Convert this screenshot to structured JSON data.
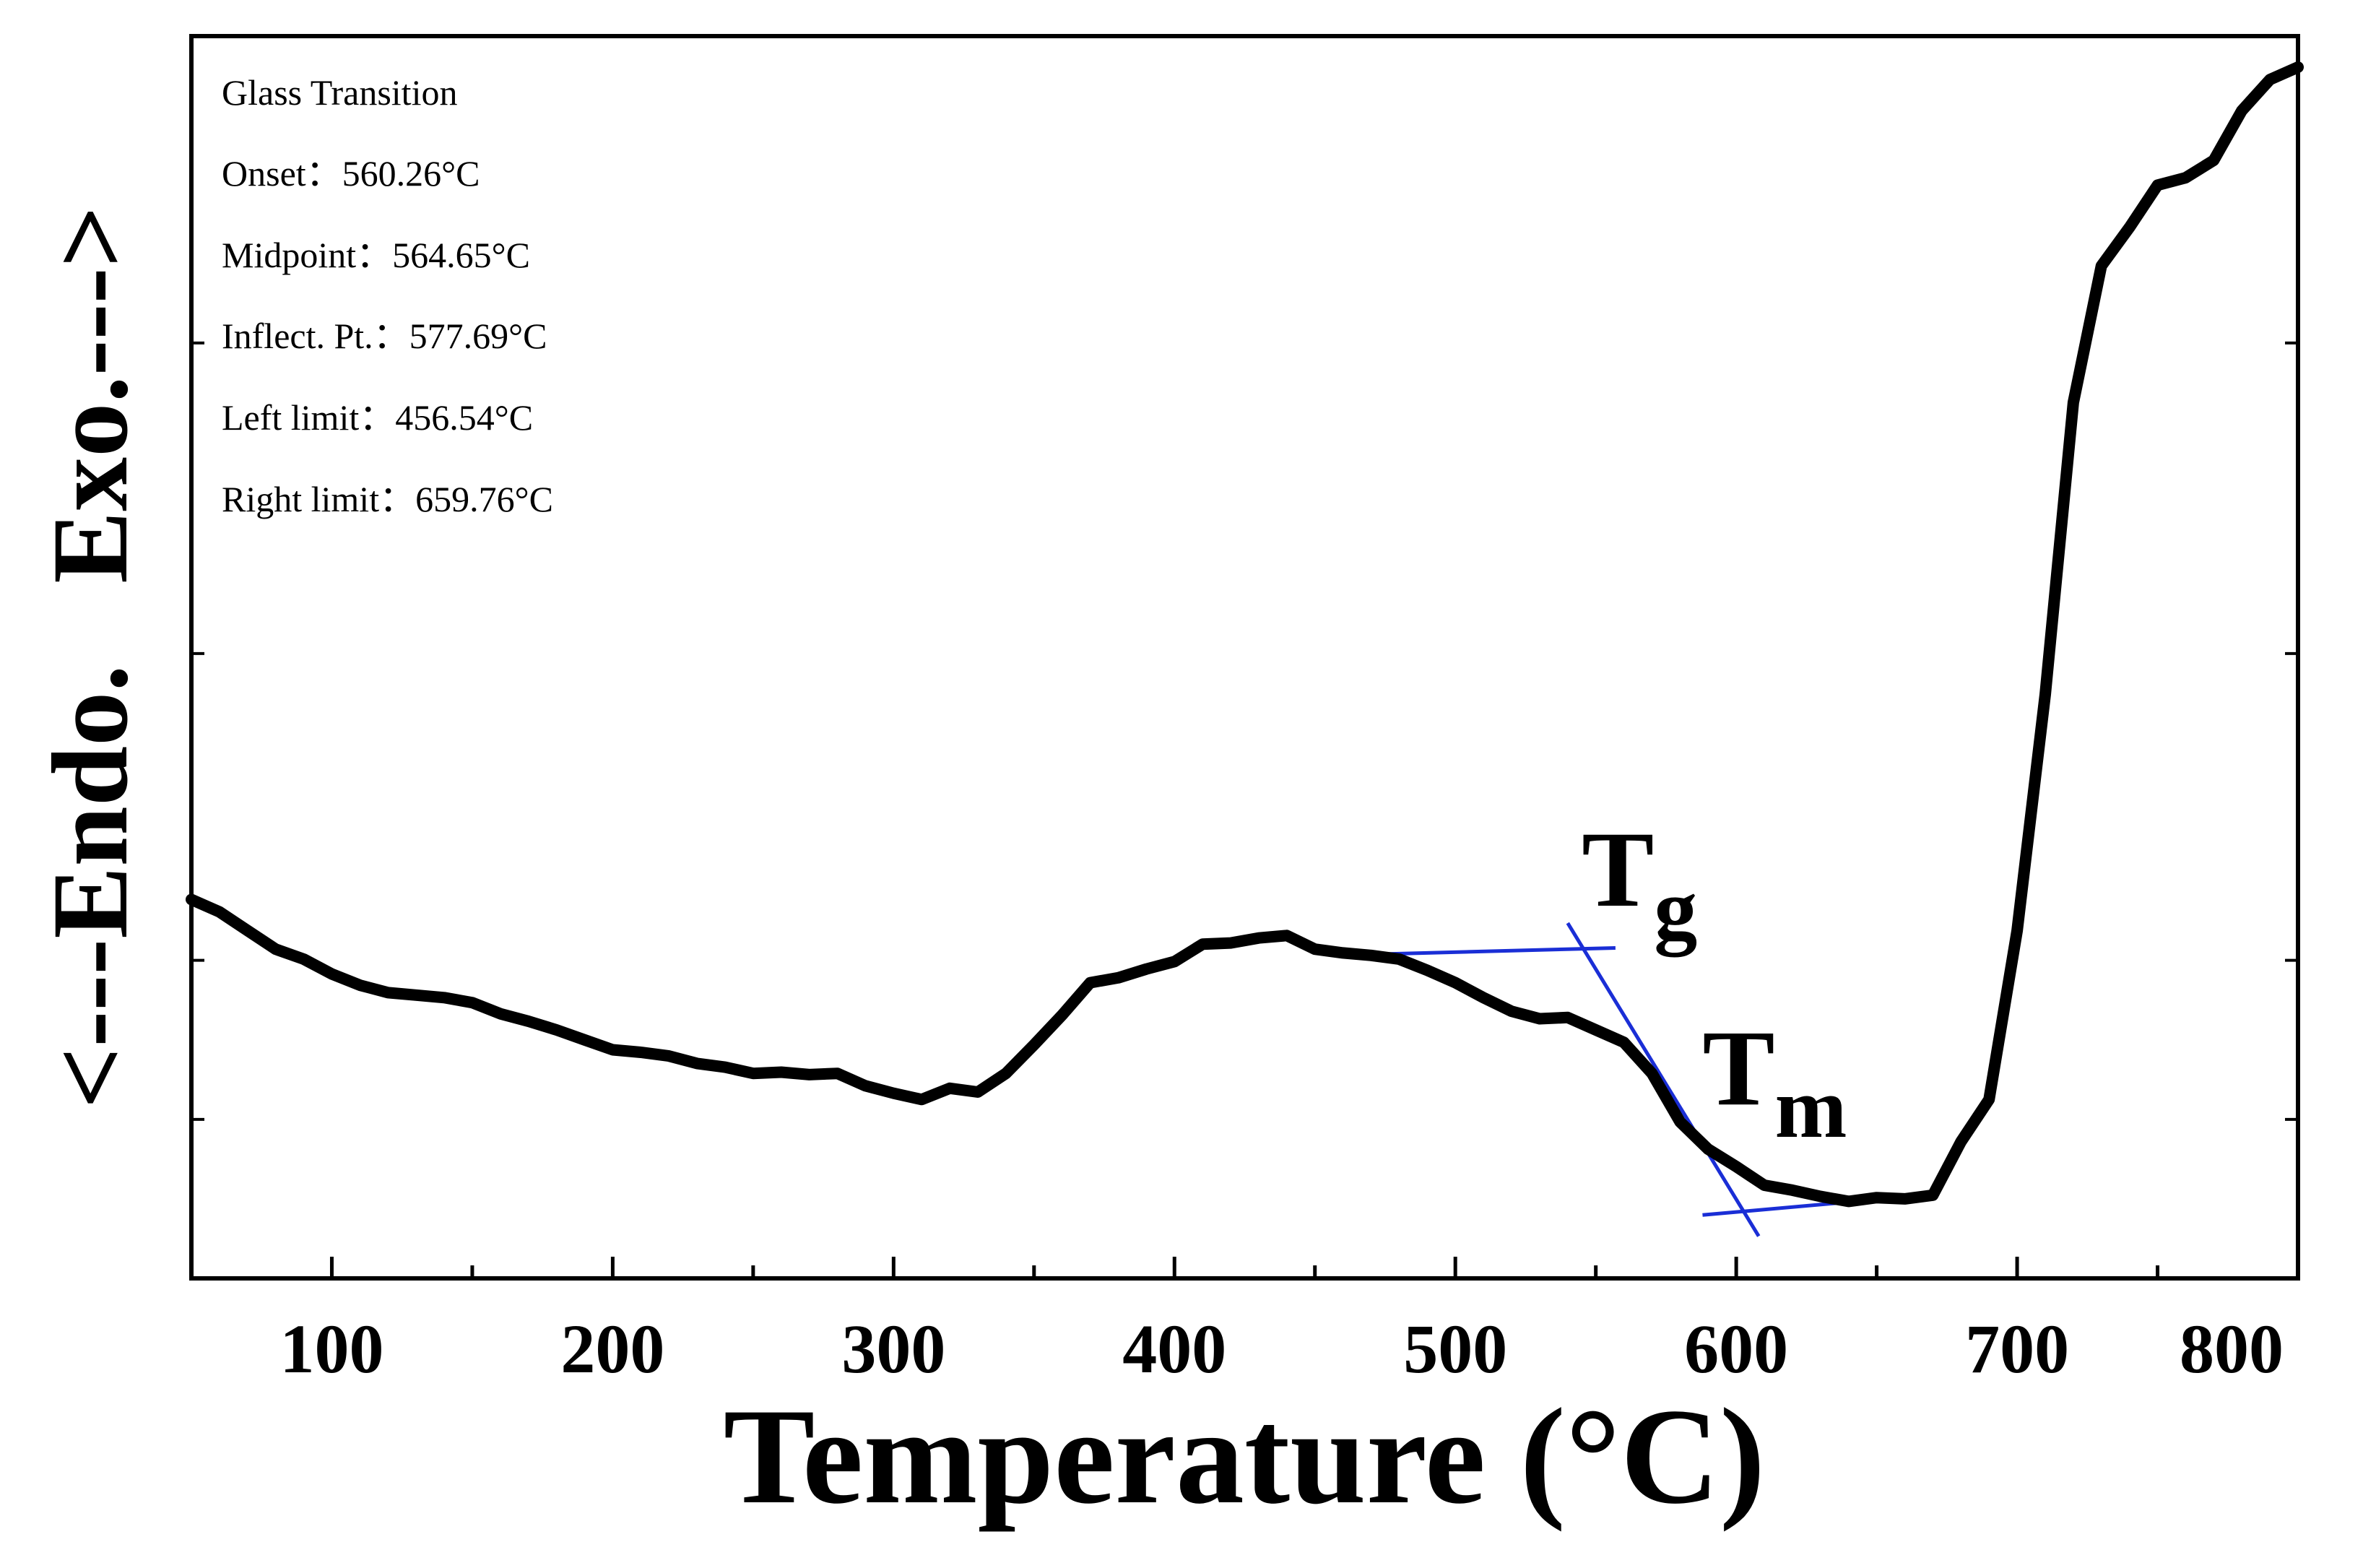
{
  "chart_data": {
    "type": "line",
    "xlabel": "Temperature (°C)",
    "ylabel": "<---Endo.   Exo.--->",
    "xlim": [
      50,
      800
    ],
    "ylim": [
      0,
      100
    ],
    "xticks": [
      100,
      200,
      300,
      400,
      500,
      600,
      700,
      800
    ],
    "grid": false,
    "series": [
      {
        "x": [
          50,
          60,
          70,
          80,
          90,
          100,
          110,
          120,
          130,
          140,
          150,
          160,
          170,
          180,
          190,
          200,
          210,
          220,
          230,
          240,
          250,
          260,
          270,
          280,
          290,
          300,
          310,
          320,
          330,
          340,
          350,
          360,
          370,
          380,
          390,
          400,
          410,
          420,
          430,
          440,
          450,
          460,
          470,
          480,
          490,
          500,
          510,
          520,
          530,
          540,
          550,
          560,
          570,
          580,
          590,
          600,
          610,
          620,
          630,
          640,
          650,
          660,
          670,
          680,
          690,
          700,
          710,
          720,
          730,
          740,
          750,
          760,
          770,
          780,
          790,
          800
        ],
        "y": [
          30.5,
          29.5,
          28.0,
          26.5,
          25.7,
          24.5,
          23.6,
          23.0,
          22.8,
          22.6,
          22.2,
          21.3,
          20.7,
          20.0,
          19.2,
          18.4,
          18.2,
          17.9,
          17.3,
          17.0,
          16.5,
          16.6,
          16.4,
          16.5,
          15.5,
          14.9,
          14.4,
          15.3,
          15.0,
          16.5,
          18.8,
          21.2,
          23.8,
          24.2,
          24.9,
          25.5,
          26.9,
          27.0,
          27.4,
          27.6,
          26.5,
          26.2,
          26.0,
          25.7,
          24.8,
          23.8,
          22.6,
          21.5,
          20.9,
          21.0,
          20.0,
          19.0,
          16.5,
          12.6,
          10.4,
          9.0,
          7.5,
          7.1,
          6.6,
          6.2,
          6.5,
          6.4,
          6.7,
          11.0,
          14.4,
          28.0,
          47.0,
          70.5,
          81.5,
          84.6,
          88.0,
          88.6,
          90.0,
          94.0,
          96.5,
          97.5
        ]
      }
    ],
    "annotations": [
      {
        "text": "Glass Transition"
      },
      {
        "text": "Onset：560.26°C"
      },
      {
        "text": "Midpoint：564.65°C"
      },
      {
        "text": "Inflect. Pt.：577.69°C"
      },
      {
        "text": "Left limit：456.54°C"
      },
      {
        "text": "Right limit：659.76°C"
      }
    ],
    "markers": [
      {
        "label": "T",
        "sub": "g",
        "x": 545,
        "y": 30
      },
      {
        "label": "T",
        "sub": "m",
        "x": 588,
        "y": 14
      }
    ],
    "tangent_lines": [
      {
        "x": [
          456,
          557
        ],
        "y": [
          26.0,
          26.6
        ]
      },
      {
        "x": [
          540,
          608
        ],
        "y": [
          28.6,
          3.4
        ]
      },
      {
        "x": [
          588,
          668
        ],
        "y": [
          5.1,
          6.7
        ]
      }
    ],
    "colors": {
      "curve": "#000000",
      "tangent": "#1a2ed6",
      "axes": "#000000"
    }
  }
}
